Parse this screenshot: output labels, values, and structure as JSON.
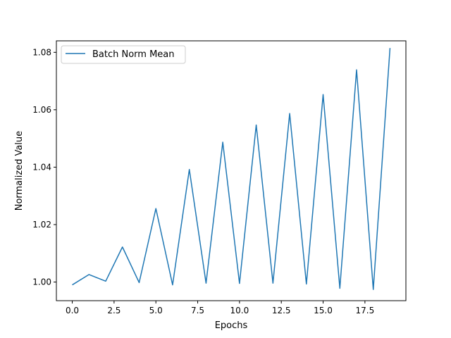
{
  "chart_data": {
    "type": "line",
    "title": "",
    "xlabel": "Epochs",
    "ylabel": "Normalized Value",
    "xlim": [
      -0.95,
      19.95
    ],
    "ylim": [
      0.9935,
      1.084
    ],
    "xticks": [
      0,
      2.5,
      5,
      7.5,
      10,
      12.5,
      15,
      17.5
    ],
    "xtick_labels": [
      "0.0",
      "2.5",
      "5.0",
      "7.5",
      "10.0",
      "12.5",
      "15.0",
      "17.5"
    ],
    "yticks": [
      1.0,
      1.02,
      1.04,
      1.06,
      1.08
    ],
    "ytick_labels": [
      "1.00",
      "1.02",
      "1.04",
      "1.06",
      "1.08"
    ],
    "grid": false,
    "legend_position": "top-left",
    "series": [
      {
        "name": "Batch Norm Mean",
        "color": "#1f77b4",
        "x": [
          0,
          1,
          2,
          3,
          4,
          5,
          6,
          7,
          8,
          9,
          10,
          11,
          12,
          13,
          14,
          15,
          16,
          17,
          18,
          19
        ],
        "values": [
          0.999,
          1.0026,
          1.0003,
          1.0122,
          0.9998,
          1.0256,
          0.999,
          1.0392,
          0.9996,
          1.0487,
          0.9995,
          1.0547,
          0.9996,
          1.0587,
          0.9993,
          1.0653,
          0.9978,
          1.0739,
          0.9974,
          1.0815
        ]
      }
    ]
  }
}
